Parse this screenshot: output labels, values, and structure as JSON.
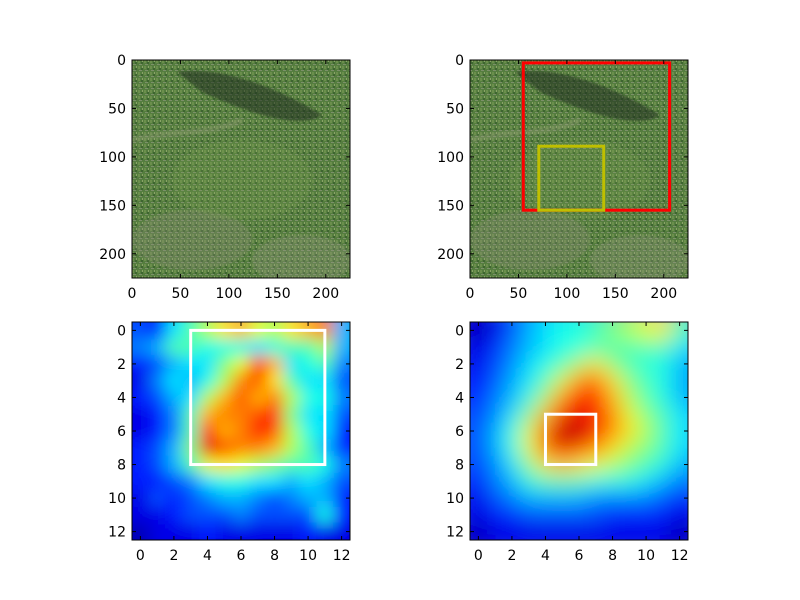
{
  "chart_data": [
    {
      "type": "image",
      "panel": "top-left",
      "image": "grass field photograph (green grass with tree shadow)",
      "xlim": [
        0,
        225
      ],
      "ylim": [
        225,
        0
      ],
      "xticks": [
        0,
        50,
        100,
        150,
        200
      ],
      "yticks": [
        0,
        50,
        100,
        150,
        200
      ],
      "colors": {
        "grass": "#4f7a3c",
        "shadow": "#2f4a28",
        "soil": "#7a8a6a"
      }
    },
    {
      "type": "image",
      "panel": "top-right",
      "image": "grass field photograph with bounding boxes",
      "xlim": [
        0,
        225
      ],
      "ylim": [
        225,
        0
      ],
      "xticks": [
        0,
        50,
        100,
        150,
        200
      ],
      "yticks": [
        0,
        50,
        100,
        150,
        200
      ],
      "boxes": [
        {
          "color": "#ff0000",
          "x0": 55,
          "y0": 3,
          "x1": 206,
          "y1": 155
        },
        {
          "color": "#bfbf00",
          "x0": 71,
          "y0": 89,
          "x1": 138,
          "y1": 155
        }
      ]
    },
    {
      "type": "heatmap",
      "panel": "bottom-left",
      "colormap": "jet",
      "xlim": [
        -0.5,
        12.5
      ],
      "ylim": [
        12.5,
        -0.5
      ],
      "xticks": [
        0,
        2,
        4,
        6,
        8,
        10,
        12
      ],
      "yticks": [
        0,
        2,
        4,
        6,
        8,
        10,
        12
      ],
      "values": [
        [
          0.2,
          0.15,
          0.35,
          0.45,
          0.55,
          0.65,
          0.7,
          0.6,
          0.55,
          0.65,
          0.7,
          0.75,
          0.3
        ],
        [
          0.25,
          0.3,
          0.45,
          0.45,
          0.4,
          0.4,
          0.4,
          0.35,
          0.4,
          0.45,
          0.45,
          0.55,
          0.3
        ],
        [
          0.15,
          0.2,
          0.3,
          0.35,
          0.35,
          0.5,
          0.6,
          0.85,
          0.7,
          0.35,
          0.4,
          0.45,
          0.25
        ],
        [
          0.1,
          0.25,
          0.35,
          0.3,
          0.4,
          0.55,
          0.75,
          0.8,
          0.65,
          0.45,
          0.35,
          0.35,
          0.2
        ],
        [
          0.15,
          0.2,
          0.3,
          0.35,
          0.55,
          0.7,
          0.8,
          0.7,
          0.75,
          0.55,
          0.4,
          0.4,
          0.25
        ],
        [
          0.1,
          0.15,
          0.25,
          0.45,
          0.7,
          0.75,
          0.75,
          0.8,
          0.85,
          0.5,
          0.35,
          0.35,
          0.2
        ],
        [
          0.1,
          0.15,
          0.25,
          0.45,
          0.85,
          0.7,
          0.75,
          0.85,
          0.8,
          0.55,
          0.4,
          0.35,
          0.15
        ],
        [
          0.15,
          0.2,
          0.3,
          0.5,
          0.9,
          0.8,
          0.75,
          0.75,
          0.7,
          0.55,
          0.45,
          0.3,
          0.15
        ],
        [
          0.15,
          0.2,
          0.3,
          0.45,
          0.6,
          0.65,
          0.6,
          0.55,
          0.5,
          0.45,
          0.45,
          0.4,
          0.25
        ],
        [
          0.15,
          0.15,
          0.2,
          0.25,
          0.35,
          0.4,
          0.4,
          0.35,
          0.35,
          0.3,
          0.35,
          0.3,
          0.2
        ],
        [
          0.1,
          0.2,
          0.15,
          0.2,
          0.25,
          0.3,
          0.3,
          0.25,
          0.2,
          0.25,
          0.3,
          0.3,
          0.15
        ],
        [
          0.1,
          0.1,
          0.15,
          0.2,
          0.2,
          0.2,
          0.25,
          0.2,
          0.2,
          0.2,
          0.2,
          0.4,
          0.15
        ],
        [
          0.05,
          0.1,
          0.1,
          0.1,
          0.15,
          0.1,
          0.1,
          0.1,
          0.1,
          0.1,
          0.15,
          0.1,
          0.1
        ]
      ],
      "boxes": [
        {
          "color": "#ffffff",
          "x0": 3,
          "y0": 0,
          "x1": 11,
          "y1": 8
        }
      ]
    },
    {
      "type": "heatmap",
      "panel": "bottom-right",
      "colormap": "jet",
      "xlim": [
        -0.5,
        12.5
      ],
      "ylim": [
        12.5,
        -0.5
      ],
      "xticks": [
        0,
        2,
        4,
        6,
        8,
        10,
        12
      ],
      "yticks": [
        0,
        2,
        4,
        6,
        8,
        10,
        12
      ],
      "values": [
        [
          0.05,
          0.1,
          0.2,
          0.3,
          0.35,
          0.4,
          0.4,
          0.45,
          0.5,
          0.55,
          0.6,
          0.65,
          0.45
        ],
        [
          0.1,
          0.15,
          0.25,
          0.3,
          0.35,
          0.4,
          0.4,
          0.45,
          0.45,
          0.45,
          0.45,
          0.45,
          0.35
        ],
        [
          0.1,
          0.2,
          0.25,
          0.35,
          0.4,
          0.45,
          0.55,
          0.65,
          0.5,
          0.45,
          0.4,
          0.4,
          0.3
        ],
        [
          0.15,
          0.2,
          0.3,
          0.35,
          0.45,
          0.6,
          0.75,
          0.8,
          0.65,
          0.5,
          0.45,
          0.4,
          0.3
        ],
        [
          0.15,
          0.25,
          0.3,
          0.4,
          0.55,
          0.75,
          0.85,
          0.85,
          0.7,
          0.55,
          0.45,
          0.4,
          0.3
        ],
        [
          0.2,
          0.25,
          0.35,
          0.5,
          0.7,
          0.85,
          0.9,
          0.85,
          0.75,
          0.6,
          0.5,
          0.45,
          0.35
        ],
        [
          0.2,
          0.3,
          0.4,
          0.6,
          0.8,
          0.95,
          0.95,
          0.85,
          0.75,
          0.65,
          0.55,
          0.45,
          0.35
        ],
        [
          0.2,
          0.3,
          0.4,
          0.6,
          0.8,
          0.9,
          0.85,
          0.75,
          0.65,
          0.55,
          0.5,
          0.45,
          0.35
        ],
        [
          0.2,
          0.25,
          0.35,
          0.5,
          0.65,
          0.7,
          0.65,
          0.6,
          0.55,
          0.5,
          0.45,
          0.4,
          0.3
        ],
        [
          0.15,
          0.25,
          0.3,
          0.4,
          0.45,
          0.45,
          0.45,
          0.4,
          0.4,
          0.4,
          0.35,
          0.3,
          0.25
        ],
        [
          0.1,
          0.2,
          0.25,
          0.3,
          0.3,
          0.3,
          0.3,
          0.25,
          0.25,
          0.25,
          0.25,
          0.2,
          0.15
        ],
        [
          0.1,
          0.15,
          0.15,
          0.2,
          0.2,
          0.2,
          0.2,
          0.2,
          0.15,
          0.15,
          0.15,
          0.15,
          0.1
        ],
        [
          0.05,
          0.1,
          0.1,
          0.1,
          0.1,
          0.1,
          0.1,
          0.1,
          0.1,
          0.1,
          0.1,
          0.1,
          0.05
        ]
      ],
      "boxes": [
        {
          "color": "#ffffff",
          "x0": 4,
          "y0": 5,
          "x1": 7,
          "y1": 8
        }
      ]
    }
  ]
}
